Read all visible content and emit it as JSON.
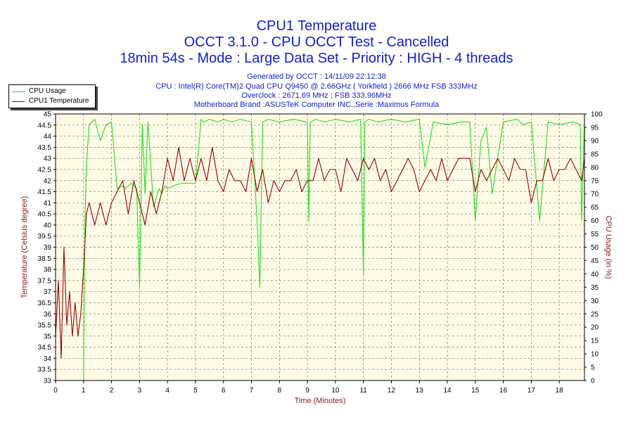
{
  "header": {
    "title": "CPU1 Temperature",
    "subtitle": "OCCT 3.1.0 - CPU OCCT Test - Cancelled",
    "subtitle2": "18min 54s - Mode : Large Data Set - Priority : HIGH - 4 threads",
    "generated": "Generated by OCCT : 14/11/09 22:12:38",
    "cpu": "CPU : Intel(R) Core(TM)2 Quad CPU Q9450 @ 2.66GHz ( Yorkfield ) 2666 MHz FSB 333MHz",
    "overclock": "Overclock : 2671.69 MHz ; FSB 333.96MHz",
    "motherboard": "Motherboard Brand :ASUSTeK Computer INC.,Serie :Maximus Formula"
  },
  "legend": {
    "usage": "CPU Usage",
    "temp": "CPU1 Temperature"
  },
  "colors": {
    "usage": "#22dd22",
    "temp": "#990000",
    "plot_bg": "#fffbe6",
    "grid": "#7a7a7a"
  },
  "chart_data": {
    "type": "line",
    "title": "CPU1 Temperature",
    "xlabel": "Time (Minutes)",
    "ylabel": "Temperature (Celsius degree)",
    "y2label": "CPU Usage (in %)",
    "xlim": [
      0,
      18.9
    ],
    "ylim": [
      33,
      45
    ],
    "y2lim": [
      0,
      100
    ],
    "x_ticks": [
      0,
      1,
      2,
      3,
      4,
      5,
      6,
      7,
      8,
      9,
      10,
      11,
      12,
      13,
      14,
      15,
      16,
      17,
      18
    ],
    "y_ticks": [
      "33",
      "33.5",
      "34",
      "34.5",
      "35",
      "35.5",
      "36",
      "36.5",
      "37",
      "37.5",
      "38",
      "38.5",
      "39",
      "39.5",
      "40",
      "40.5",
      "41",
      "41.5",
      "42",
      "42.5",
      "43",
      "43.5",
      "44",
      "44.5",
      "45"
    ],
    "y2_ticks": [
      "0",
      "5",
      "10",
      "15",
      "20",
      "25",
      "30",
      "35",
      "40",
      "45",
      "50",
      "55",
      "60",
      "65",
      "70",
      "75",
      "80",
      "85",
      "90",
      "95",
      "100"
    ],
    "grid": true,
    "legend_position": "top-left",
    "series": [
      {
        "name": "CPU Usage",
        "axis": "right",
        "x": [
          0,
          0.95,
          1.0,
          1.05,
          1.1,
          1.2,
          1.4,
          1.6,
          1.8,
          2.0,
          2.2,
          2.4,
          2.5,
          2.7,
          2.9,
          3.0,
          3.1,
          3.2,
          3.3,
          3.5,
          3.7,
          3.8,
          3.9,
          4.0,
          4.2,
          4.5,
          5.0,
          5.2,
          5.3,
          5.5,
          5.8,
          6.0,
          6.3,
          6.6,
          7.0,
          7.2,
          7.3,
          7.4,
          7.6,
          8.0,
          8.5,
          9.0,
          9.05,
          9.1,
          9.3,
          9.6,
          10.0,
          10.5,
          10.9,
          11.0,
          11.05,
          11.2,
          11.5,
          12.0,
          12.5,
          13.0,
          13.2,
          13.5,
          14.0,
          14.5,
          14.8,
          15.0,
          15.2,
          15.4,
          15.6,
          16.0,
          16.5,
          16.7,
          17.0,
          17.3,
          17.6,
          18.0,
          18.5,
          18.75,
          18.8,
          18.9
        ],
        "values": [
          0,
          0,
          0,
          60,
          80,
          96,
          98,
          90,
          96,
          97,
          72,
          73,
          72,
          74,
          72,
          35,
          96,
          70,
          97,
          65,
          72,
          70,
          73,
          72,
          73,
          74,
          74,
          98,
          97,
          98,
          97,
          98,
          97,
          98,
          97,
          60,
          35,
          97,
          98,
          97,
          98,
          97,
          60,
          97,
          98,
          97,
          98,
          97,
          98,
          40,
          97,
          98,
          97,
          98,
          97,
          98,
          80,
          97,
          96,
          97,
          97,
          60,
          90,
          95,
          70,
          97,
          98,
          96,
          97,
          60,
          97,
          96,
          97,
          96,
          60,
          98
        ]
      },
      {
        "name": "CPU1 Temperature",
        "axis": "left",
        "x": [
          0,
          0.1,
          0.2,
          0.3,
          0.4,
          0.5,
          0.6,
          0.7,
          0.8,
          0.9,
          1.0,
          1.1,
          1.2,
          1.4,
          1.6,
          1.8,
          2.0,
          2.2,
          2.4,
          2.6,
          2.8,
          3.0,
          3.2,
          3.4,
          3.6,
          3.8,
          4.0,
          4.2,
          4.4,
          4.6,
          4.8,
          5.0,
          5.2,
          5.4,
          5.6,
          5.8,
          6.0,
          6.2,
          6.4,
          6.6,
          6.8,
          7.0,
          7.2,
          7.4,
          7.6,
          7.8,
          8.0,
          8.2,
          8.4,
          8.6,
          8.8,
          9.0,
          9.2,
          9.4,
          9.6,
          9.8,
          10.0,
          10.2,
          10.4,
          10.6,
          10.8,
          11.0,
          11.2,
          11.4,
          11.6,
          11.8,
          12.0,
          12.2,
          12.4,
          12.6,
          12.8,
          13.0,
          13.2,
          13.4,
          13.6,
          13.8,
          14.0,
          14.2,
          14.4,
          14.6,
          14.8,
          15.0,
          15.2,
          15.4,
          15.6,
          15.8,
          16.0,
          16.2,
          16.4,
          16.6,
          16.8,
          17.0,
          17.2,
          17.4,
          17.6,
          17.8,
          18.0,
          18.2,
          18.4,
          18.6,
          18.8,
          18.9
        ],
        "values": [
          35,
          37.5,
          34,
          39,
          35.5,
          37,
          35,
          36.5,
          35,
          36,
          38,
          40.5,
          41,
          40,
          41,
          40,
          41,
          41.5,
          42,
          40.5,
          42,
          41,
          40,
          41.5,
          40.5,
          41.5,
          43,
          42,
          43.5,
          42,
          43,
          42,
          43,
          42,
          43.5,
          42,
          41.5,
          42.5,
          42,
          42,
          41.5,
          43,
          41.5,
          42.5,
          41,
          42,
          41.5,
          42,
          42,
          42.5,
          41.5,
          42,
          42,
          43,
          42,
          42.5,
          42.5,
          41.5,
          43,
          42.5,
          42,
          43,
          42.5,
          43,
          42,
          42.5,
          41.5,
          42,
          42.5,
          43,
          42.5,
          41.5,
          42,
          42.5,
          42,
          43,
          42,
          42.5,
          43,
          43,
          43,
          41.5,
          42.5,
          42,
          42.5,
          43,
          42.5,
          42,
          43,
          42.5,
          42.5,
          41,
          42,
          42,
          43,
          42,
          42.5,
          42.5,
          43,
          42.5,
          42,
          43
        ]
      }
    ]
  }
}
